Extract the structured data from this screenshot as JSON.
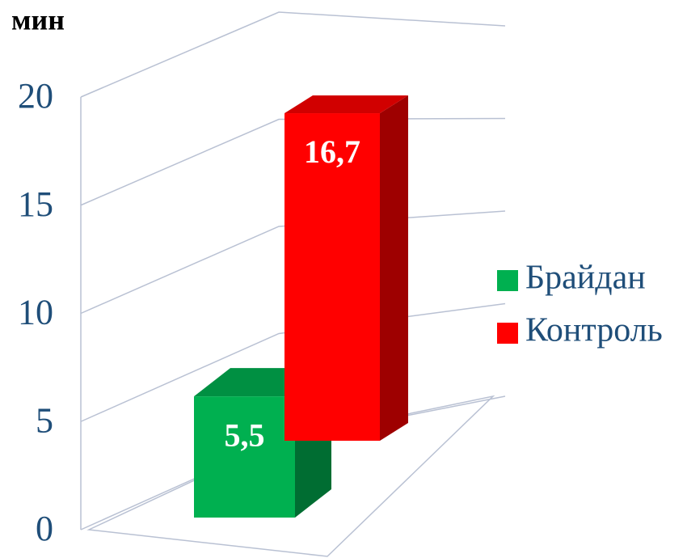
{
  "chart_data": {
    "type": "bar3d",
    "y_label": "мин",
    "categories": [
      null
    ],
    "series": [
      {
        "name": "Брайдан",
        "color": "#00b050",
        "values": [
          5.5
        ],
        "value_labels": [
          "5,5"
        ]
      },
      {
        "name": "Контроль",
        "color": "#ff0000",
        "values": [
          16.7
        ],
        "value_labels": [
          "16,7"
        ]
      }
    ],
    "ylim": [
      0,
      20
    ],
    "yticks": [
      0,
      5,
      10,
      15,
      20
    ],
    "grid": true,
    "legend": "right"
  }
}
